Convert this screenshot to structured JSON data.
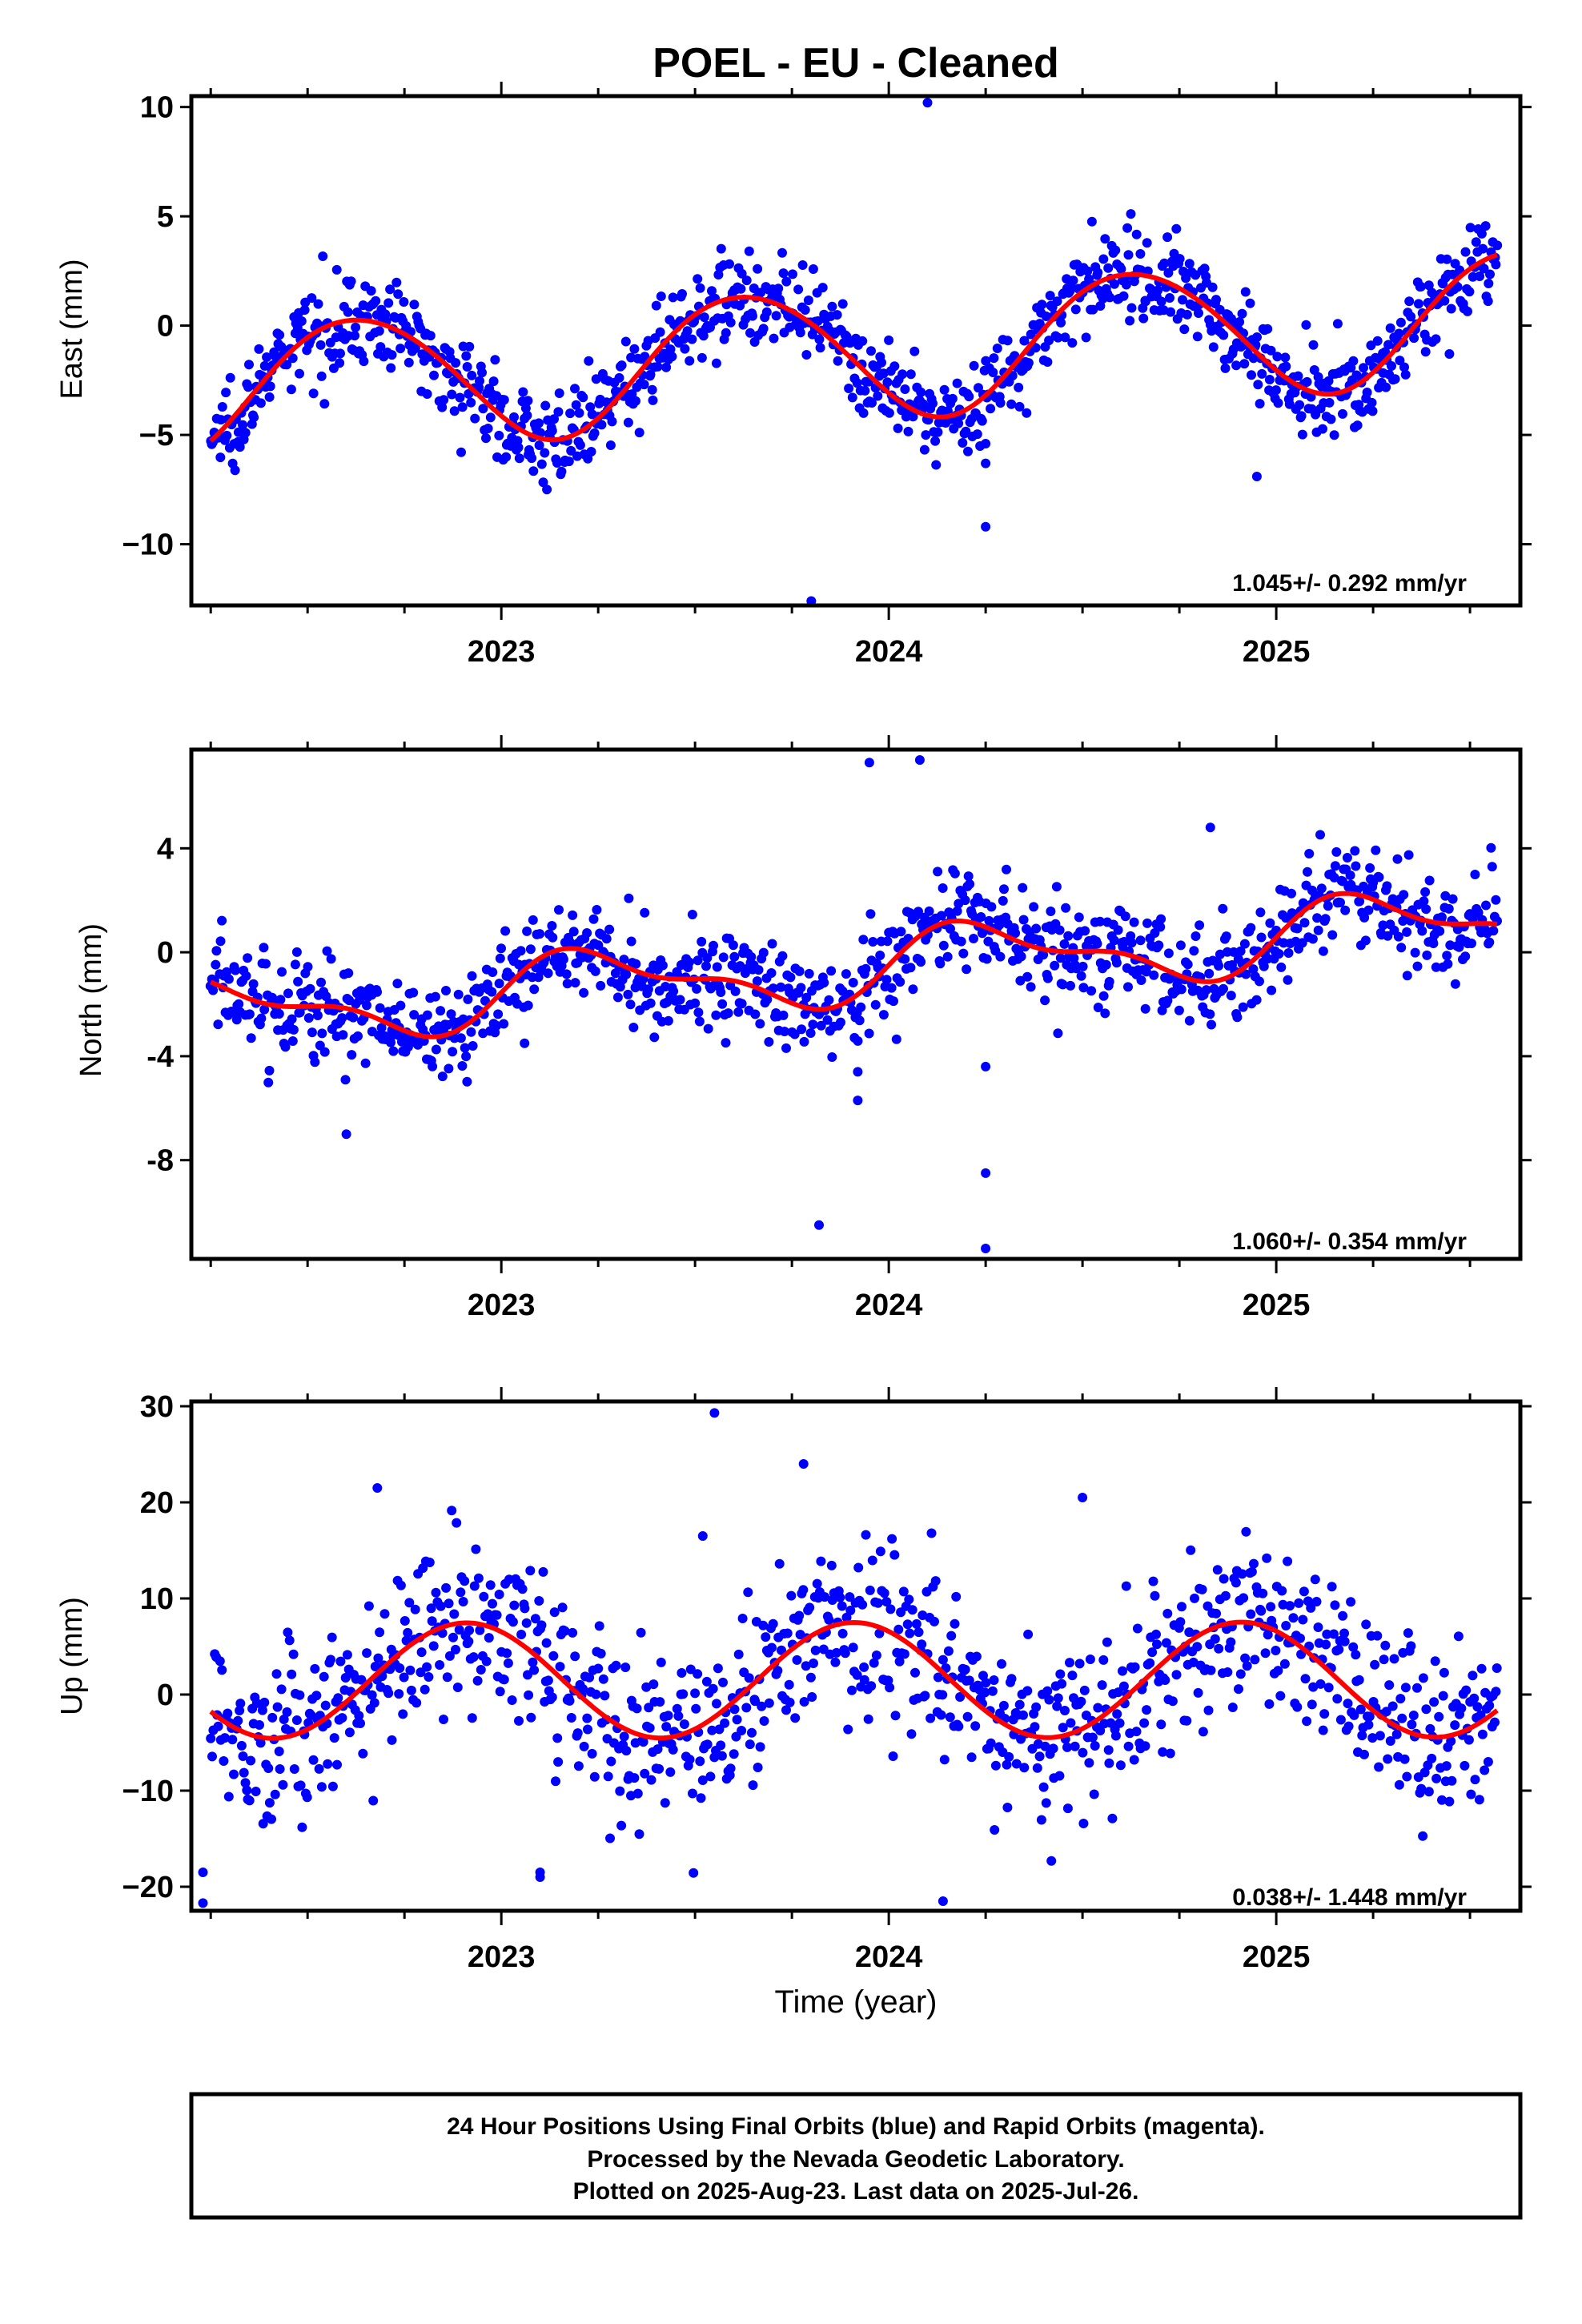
{
  "title": "POEL  - EU - Cleaned",
  "colors": {
    "points": "#0000ff",
    "model": "#ff0000",
    "frame": "#000000"
  },
  "chart_data": [
    {
      "type": "scatter",
      "component": "east",
      "ylabel": "East (mm)",
      "xlabel": "",
      "rate_text": "1.045+/- 0.292 mm/yr",
      "xlim": [
        2022.2,
        2025.63
      ],
      "ylim": [
        -12.8,
        10.5
      ],
      "x_ticks": [
        2023,
        2024,
        2025
      ],
      "x_tick_labels": [
        "2023",
        "2024",
        "2025"
      ],
      "y_ticks": [
        10,
        5,
        0,
        -5,
        -10
      ],
      "y_tick_labels": [
        "10",
        "5",
        "0",
        "−5",
        "−10"
      ],
      "model": {
        "offset": -1.25,
        "rate": 1.045,
        "amp1": 3.0,
        "phase1": 2022.38,
        "amp2": 0.2,
        "phase2": 2022.3,
        "t0": 2023.9
      },
      "series": [
        {
          "kind": "daily_positions",
          "start": 2022.25,
          "end": 2025.57,
          "count": 1100,
          "noise": 1.0
        }
      ],
      "outliers": [
        [
          2024.1,
          10.2
        ],
        [
          2023.8,
          -12.6
        ],
        [
          2024.25,
          -9.2
        ],
        [
          2024.25,
          -6.3
        ],
        [
          2024.25,
          -5.4
        ],
        [
          2024.95,
          -6.9
        ],
        [
          2023.07,
          -5.9
        ]
      ],
      "grid": false
    },
    {
      "type": "scatter",
      "component": "north",
      "ylabel": "North (mm)",
      "xlabel": "",
      "rate_text": "1.060+/- 0.354 mm/yr",
      "xlim": [
        2022.2,
        2025.63
      ],
      "ylim": [
        -11.8,
        7.8
      ],
      "x_ticks": [
        2023,
        2024,
        2025
      ],
      "x_tick_labels": [
        "2023",
        "2024",
        "2025"
      ],
      "y_ticks": [
        4,
        0,
        -4,
        -8
      ],
      "y_tick_labels": [
        "4",
        "0",
        "-4",
        "-8"
      ],
      "model": {
        "offset": -0.6,
        "rate": 1.06,
        "amp1": 1.2,
        "phase1": 2022.0,
        "amp2": 0.55,
        "phase2": 2022.0,
        "t0": 2023.9
      },
      "series": [
        {
          "kind": "daily_positions",
          "start": 2022.25,
          "end": 2025.57,
          "count": 1050,
          "noise": 1.0
        }
      ],
      "outliers": [
        [
          2023.82,
          -10.5
        ],
        [
          2023.92,
          -5.7
        ],
        [
          2023.92,
          -4.6
        ],
        [
          2024.25,
          -8.5
        ],
        [
          2024.25,
          -11.4
        ],
        [
          2024.25,
          -4.4
        ],
        [
          2023.95,
          7.3
        ],
        [
          2024.08,
          7.4
        ],
        [
          2024.83,
          4.8
        ],
        [
          2022.6,
          -7.0
        ],
        [
          2023.06,
          -3.5
        ]
      ],
      "grid": false
    },
    {
      "type": "scatter",
      "component": "up",
      "ylabel": "Up (mm)",
      "xlabel": "Time (year)",
      "rate_text": "0.038+/- 1.448 mm/yr",
      "xlim": [
        2022.2,
        2025.63
      ],
      "ylim": [
        -22.5,
        30.5
      ],
      "x_ticks": [
        2023,
        2024,
        2025
      ],
      "x_tick_labels": [
        "2023",
        "2024",
        "2025"
      ],
      "y_ticks": [
        30,
        20,
        10,
        0,
        -10,
        -20
      ],
      "y_tick_labels": [
        "30",
        "20",
        "10",
        "0",
        "−10",
        "−20"
      ],
      "model": {
        "offset": 1.5,
        "rate": 0.038,
        "amp1": 6.0,
        "phase1": 2022.66,
        "amp2": 0.0,
        "phase2": 2022.0,
        "t0": 2023.9
      },
      "series": [
        {
          "kind": "daily_positions",
          "start": 2022.25,
          "end": 2025.57,
          "count": 1000,
          "noise": 4.5
        }
      ],
      "outliers": [
        [
          2023.55,
          29.3
        ],
        [
          2023.78,
          24.0
        ],
        [
          2022.23,
          -21.7
        ],
        [
          2022.23,
          -18.5
        ],
        [
          2024.14,
          -21.5
        ],
        [
          2023.1,
          -19.0
        ],
        [
          2023.1,
          -18.5
        ],
        [
          2022.68,
          21.5
        ],
        [
          2024.5,
          20.5
        ],
        [
          2023.52,
          16.5
        ]
      ],
      "grid": false
    }
  ],
  "footer": {
    "lines": [
      "24 Hour Positions Using Final Orbits (blue) and Rapid Orbits (magenta).",
      "Processed by the Nevada Geodetic Laboratory.",
      "Plotted on 2025-Aug-23. Last data on 2025-Jul-26."
    ]
  }
}
